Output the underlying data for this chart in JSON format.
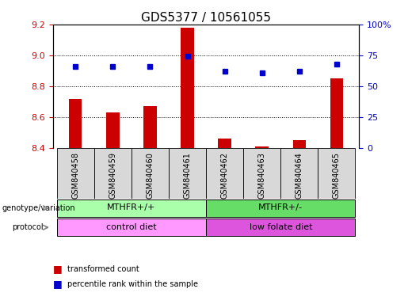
{
  "title": "GDS5377 / 10561055",
  "samples": [
    "GSM840458",
    "GSM840459",
    "GSM840460",
    "GSM840461",
    "GSM840462",
    "GSM840463",
    "GSM840464",
    "GSM840465"
  ],
  "bar_values": [
    8.72,
    8.63,
    8.67,
    9.18,
    8.46,
    8.41,
    8.45,
    8.85
  ],
  "dot_values": [
    66,
    66,
    66,
    74,
    62,
    61,
    62,
    68
  ],
  "bar_bottom": 8.4,
  "ylim_left": [
    8.4,
    9.2
  ],
  "ylim_right": [
    0,
    100
  ],
  "yticks_left": [
    8.4,
    8.6,
    8.8,
    9.0,
    9.2
  ],
  "yticks_right": [
    0,
    25,
    50,
    75,
    100
  ],
  "bar_color": "#cc0000",
  "dot_color": "#0000cc",
  "bg_color": "#ffffff",
  "cell_bg": "#d8d8d8",
  "genotype_groups": [
    {
      "label": "MTHFR+/+",
      "start": 0,
      "end": 4,
      "color": "#aaffaa"
    },
    {
      "label": "MTHFR+/-",
      "start": 4,
      "end": 8,
      "color": "#66dd66"
    }
  ],
  "protocol_groups": [
    {
      "label": "control diet",
      "start": 0,
      "end": 4,
      "color": "#ff99ff"
    },
    {
      "label": "low folate diet",
      "start": 4,
      "end": 8,
      "color": "#dd55dd"
    }
  ],
  "legend_bar_label": "transformed count",
  "legend_dot_label": "percentile rank within the sample",
  "left_tick_color": "#cc0000",
  "right_tick_color": "#0000cc",
  "title_fontsize": 11,
  "tick_fontsize": 8,
  "label_fontsize": 7.5,
  "annot_fontsize": 8,
  "sample_fontsize": 7
}
